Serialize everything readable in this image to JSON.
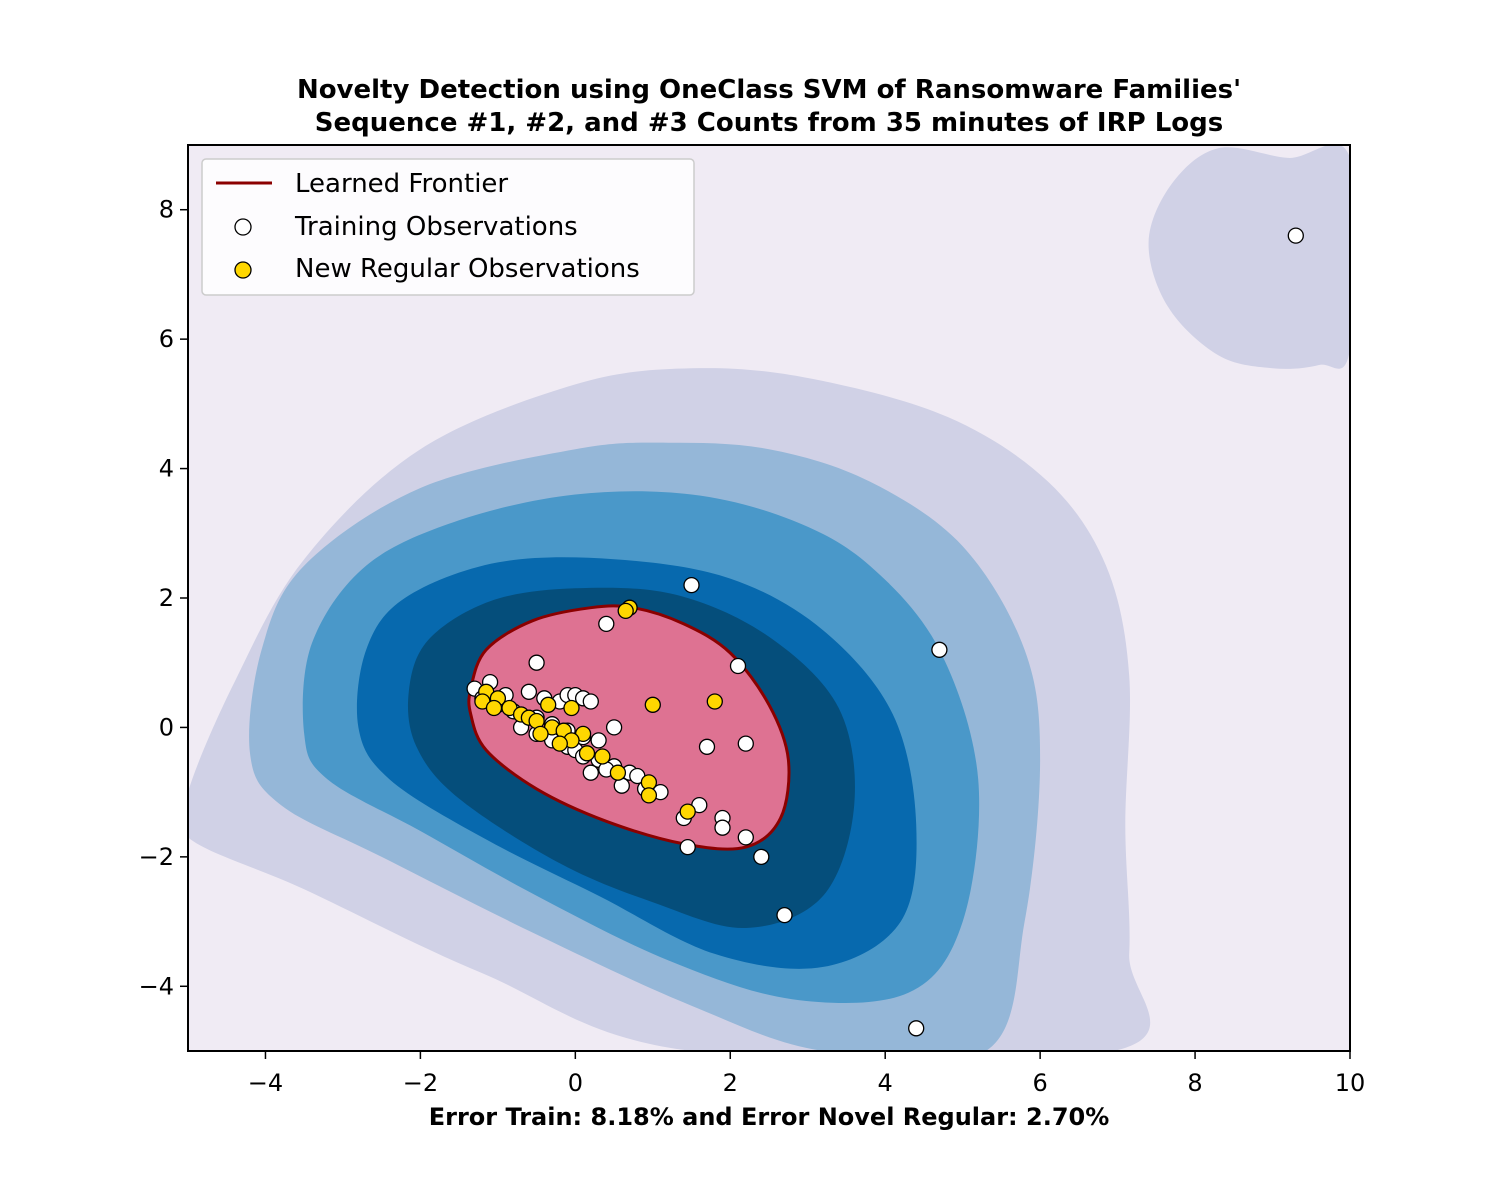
{
  "chart_data": {
    "type": "scatter",
    "title_line1": "Novelty Detection using OneClass SVM of Ransomware Families'",
    "title_line2": "Sequence #1, #2, and #3 Counts from 35 minutes of IRP Logs",
    "xlabel": "Error Train: 8.18% and Error Novel Regular: 2.70%",
    "ylabel": "",
    "xlim": [
      -5,
      10
    ],
    "ylim": [
      -5,
      9
    ],
    "xticks": [
      -4,
      -2,
      0,
      2,
      4,
      6,
      8,
      10
    ],
    "yticks": [
      -4,
      -2,
      0,
      2,
      4,
      6,
      8
    ],
    "xtick_labels": [
      "−4",
      "−2",
      "0",
      "2",
      "4",
      "6",
      "8",
      "10"
    ],
    "ytick_labels": [
      "−4",
      "−2",
      "0",
      "2",
      "4",
      "6",
      "8"
    ],
    "grid": false,
    "legend_position": "top-left",
    "legend": [
      {
        "label": "Learned Frontier",
        "kind": "line",
        "color": "#8b0000"
      },
      {
        "label": "Training Observations",
        "kind": "marker",
        "color": "#ffffff"
      },
      {
        "label": "New Regular Observations",
        "kind": "marker",
        "color": "#ffd700"
      }
    ],
    "colors": {
      "background": "#f0ebf4",
      "contour_levels": [
        "#d0d1e6",
        "#95b7d8",
        "#4a98c9",
        "#0769ae",
        "#054e7b"
      ],
      "inside_frontier": "#de7292",
      "frontier": "#8b0000",
      "training_marker": "#ffffff",
      "novel_marker": "#ffd700"
    },
    "contour_regions": [
      {
        "level": 1,
        "points": [
          [
            -5,
            -1
          ],
          [
            -4.4,
            0.7
          ],
          [
            -3.5,
            2.6
          ],
          [
            -2,
            4.3
          ],
          [
            0,
            5.3
          ],
          [
            1.5,
            5.55
          ],
          [
            3,
            5.4
          ],
          [
            4.8,
            4.8
          ],
          [
            6.1,
            3.8
          ],
          [
            6.85,
            2.5
          ],
          [
            7.15,
            0.8
          ],
          [
            7.1,
            -1.5
          ],
          [
            7.15,
            -3.5
          ],
          [
            6.95,
            -5
          ],
          [
            1.5,
            -5
          ],
          [
            -1.2,
            -3.8
          ],
          [
            -3.5,
            -2.5
          ],
          [
            -5,
            -1.7
          ]
        ]
      },
      {
        "level": 1,
        "points": [
          [
            9.2,
            8.8
          ],
          [
            10,
            8.8
          ],
          [
            10,
            5.85
          ],
          [
            9.6,
            5.6
          ],
          [
            9.0,
            5.55
          ],
          [
            8.3,
            5.75
          ],
          [
            7.65,
            6.5
          ],
          [
            7.4,
            7.5
          ],
          [
            7.7,
            8.4
          ],
          [
            8.3,
            8.95
          ]
        ]
      },
      {
        "level": 2,
        "points": [
          [
            -4.2,
            -0.4
          ],
          [
            -4.05,
            1.2
          ],
          [
            -3.5,
            2.5
          ],
          [
            -2,
            3.7
          ],
          [
            0,
            4.3
          ],
          [
            1.2,
            4.4
          ],
          [
            2.5,
            4.3
          ],
          [
            3.8,
            3.8
          ],
          [
            5,
            2.8
          ],
          [
            5.8,
            1.2
          ],
          [
            6,
            -0.5
          ],
          [
            5.8,
            -3
          ],
          [
            5.3,
            -5
          ],
          [
            3.2,
            -5
          ],
          [
            1.5,
            -4.3
          ],
          [
            -0.5,
            -3.2
          ],
          [
            -2.5,
            -2
          ],
          [
            -3.8,
            -1.2
          ]
        ]
      },
      {
        "level": 3,
        "points": [
          [
            -3.5,
            -0.1
          ],
          [
            -3.4,
            1.3
          ],
          [
            -2.7,
            2.5
          ],
          [
            -1.5,
            3.2
          ],
          [
            0,
            3.6
          ],
          [
            1.5,
            3.6
          ],
          [
            2.8,
            3.2
          ],
          [
            3.8,
            2.5
          ],
          [
            4.7,
            1.2
          ],
          [
            5.2,
            -0.8
          ],
          [
            5.0,
            -3
          ],
          [
            4.3,
            -4.1
          ],
          [
            2.8,
            -4.2
          ],
          [
            1.2,
            -3.6
          ],
          [
            -0.5,
            -2.6
          ],
          [
            -2,
            -1.6
          ],
          [
            -3.2,
            -0.8
          ]
        ]
      },
      {
        "level": 4,
        "points": [
          [
            -2.8,
            0
          ],
          [
            -2.7,
            1.2
          ],
          [
            -2.2,
            2
          ],
          [
            -1,
            2.55
          ],
          [
            0.5,
            2.6
          ],
          [
            2,
            2.3
          ],
          [
            3.2,
            1.5
          ],
          [
            4.1,
            0.2
          ],
          [
            4.4,
            -1.5
          ],
          [
            4.2,
            -3
          ],
          [
            3.2,
            -3.7
          ],
          [
            1.8,
            -3.5
          ],
          [
            0.3,
            -2.6
          ],
          [
            -1.2,
            -1.7
          ],
          [
            -2.4,
            -0.8
          ]
        ]
      },
      {
        "level": 5,
        "points": [
          [
            -2.15,
            0.55
          ],
          [
            -1.9,
            1.35
          ],
          [
            -1.1,
            1.95
          ],
          [
            0,
            2.15
          ],
          [
            1.3,
            2.05
          ],
          [
            2.5,
            1.4
          ],
          [
            3.4,
            0.3
          ],
          [
            3.6,
            -1.2
          ],
          [
            3.2,
            -2.6
          ],
          [
            2.2,
            -3.1
          ],
          [
            1.0,
            -2.7
          ],
          [
            -0.2,
            -2.1
          ],
          [
            -1.5,
            -1.1
          ],
          [
            -2.05,
            -0.3
          ]
        ]
      },
      {
        "level": 6,
        "points": [
          [
            -1.35,
            0.6
          ],
          [
            -1.15,
            1.2
          ],
          [
            -0.55,
            1.65
          ],
          [
            0.2,
            1.85
          ],
          [
            0.75,
            1.85
          ],
          [
            1.4,
            1.6
          ],
          [
            2.0,
            1.15
          ],
          [
            2.5,
            0.35
          ],
          [
            2.75,
            -0.5
          ],
          [
            2.65,
            -1.4
          ],
          [
            2.2,
            -1.85
          ],
          [
            1.4,
            -1.8
          ],
          [
            0.4,
            -1.45
          ],
          [
            -0.5,
            -0.95
          ],
          [
            -1.15,
            -0.35
          ],
          [
            -1.35,
            0.2
          ]
        ]
      }
    ],
    "series": [
      {
        "name": "Training Observations",
        "points": [
          [
            9.3,
            7.6
          ],
          [
            1.5,
            2.2
          ],
          [
            4.7,
            1.2
          ],
          [
            0.4,
            1.6
          ],
          [
            -0.5,
            1.0
          ],
          [
            2.1,
            0.95
          ],
          [
            1.7,
            -0.3
          ],
          [
            2.2,
            -0.25
          ],
          [
            0.5,
            0.0
          ],
          [
            -1.3,
            0.6
          ],
          [
            -1.1,
            0.7
          ],
          [
            -0.9,
            0.5
          ],
          [
            -0.6,
            0.55
          ],
          [
            -0.4,
            0.45
          ],
          [
            -0.2,
            0.4
          ],
          [
            -0.1,
            0.5
          ],
          [
            0.0,
            0.5
          ],
          [
            0.1,
            0.45
          ],
          [
            0.2,
            0.4
          ],
          [
            -1.2,
            0.45
          ],
          [
            -1.0,
            0.35
          ],
          [
            -0.8,
            0.25
          ],
          [
            -0.7,
            0.2
          ],
          [
            -0.5,
            0.15
          ],
          [
            -0.3,
            0.05
          ],
          [
            -0.1,
            -0.05
          ],
          [
            0.1,
            -0.15
          ],
          [
            0.3,
            -0.2
          ],
          [
            -0.7,
            0.0
          ],
          [
            -0.5,
            -0.1
          ],
          [
            -0.3,
            -0.2
          ],
          [
            -0.1,
            -0.3
          ],
          [
            0.0,
            -0.35
          ],
          [
            0.1,
            -0.45
          ],
          [
            0.3,
            -0.5
          ],
          [
            0.5,
            -0.6
          ],
          [
            0.7,
            -0.7
          ],
          [
            0.2,
            -0.7
          ],
          [
            0.4,
            -0.65
          ],
          [
            0.6,
            -0.9
          ],
          [
            0.8,
            -0.75
          ],
          [
            0.9,
            -0.95
          ],
          [
            1.1,
            -1.0
          ],
          [
            1.6,
            -1.2
          ],
          [
            1.4,
            -1.4
          ],
          [
            1.9,
            -1.4
          ],
          [
            1.9,
            -1.55
          ],
          [
            2.2,
            -1.7
          ],
          [
            1.45,
            -1.85
          ],
          [
            2.4,
            -2.0
          ],
          [
            2.7,
            -2.9
          ],
          [
            4.4,
            -4.65
          ]
        ]
      },
      {
        "name": "New Regular Observations",
        "points": [
          [
            0.7,
            1.85
          ],
          [
            0.65,
            1.8
          ],
          [
            1.8,
            0.4
          ],
          [
            1.0,
            0.35
          ],
          [
            -1.15,
            0.55
          ],
          [
            -1.0,
            0.45
          ],
          [
            -1.2,
            0.4
          ],
          [
            -1.05,
            0.3
          ],
          [
            -0.85,
            0.3
          ],
          [
            -0.7,
            0.2
          ],
          [
            -0.6,
            0.15
          ],
          [
            -0.35,
            0.35
          ],
          [
            -0.05,
            0.3
          ],
          [
            -0.5,
            0.1
          ],
          [
            -0.3,
            0.0
          ],
          [
            -0.15,
            -0.05
          ],
          [
            0.1,
            -0.1
          ],
          [
            -0.05,
            -0.2
          ],
          [
            -0.45,
            -0.1
          ],
          [
            -0.2,
            -0.25
          ],
          [
            0.15,
            -0.4
          ],
          [
            0.35,
            -0.45
          ],
          [
            0.55,
            -0.7
          ],
          [
            0.95,
            -0.85
          ],
          [
            0.95,
            -1.05
          ],
          [
            1.45,
            -1.3
          ]
        ]
      }
    ]
  }
}
